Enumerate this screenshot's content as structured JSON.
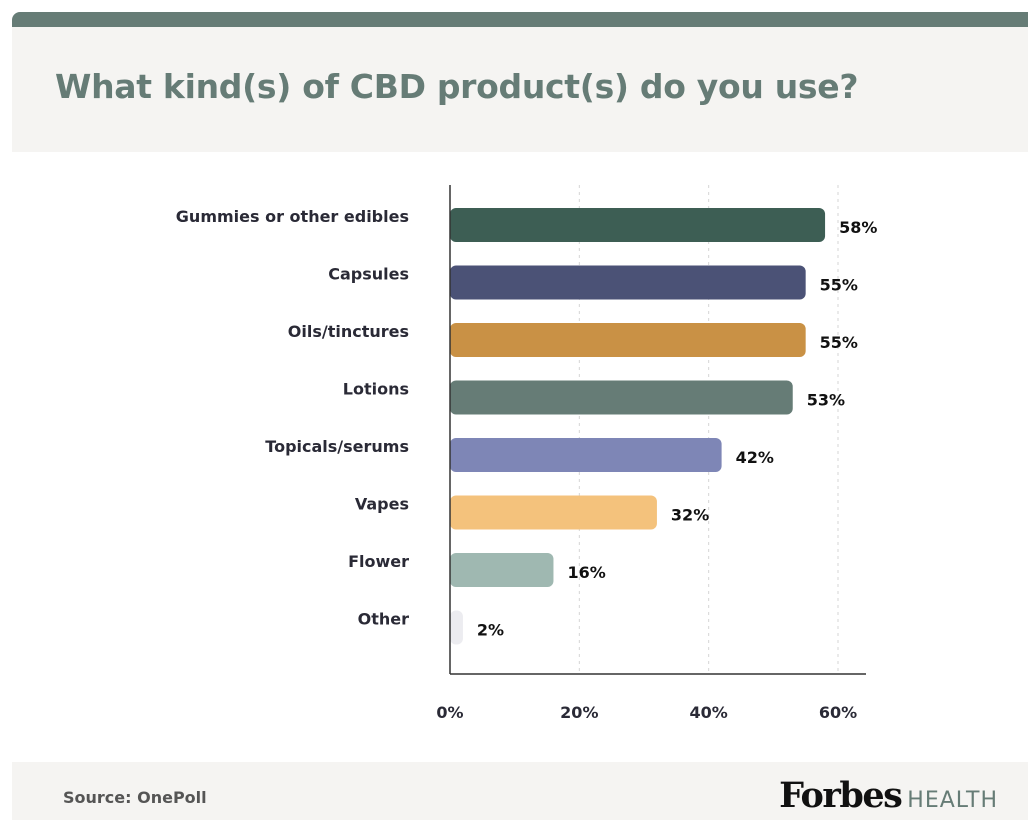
{
  "title": "What kind(s) of CBD product(s) do you use?",
  "footer": {
    "source_label": "Source:",
    "source_value": "OnePoll"
  },
  "brand": {
    "name": "Forbes",
    "subname": "HEALTH"
  },
  "chart_data": {
    "type": "bar",
    "orientation": "horizontal",
    "title": "What kind(s) of CBD product(s) do you use?",
    "categories": [
      "Gummies or other edibles",
      "Capsules",
      "Oils/tinctures",
      "Lotions",
      "Topicals/serums",
      "Vapes",
      "Flower",
      "Other"
    ],
    "values": [
      58,
      55,
      55,
      53,
      42,
      32,
      16,
      2
    ],
    "value_labels": [
      "58%",
      "55%",
      "55%",
      "53%",
      "42%",
      "32%",
      "16%",
      "2%"
    ],
    "colors": [
      "#3d5e54",
      "#4b5276",
      "#c99145",
      "#667c76",
      "#7e86b6",
      "#f4c27c",
      "#9fb8b1",
      "#ececf0"
    ],
    "xlim": [
      0,
      60
    ],
    "xticks": [
      0,
      20,
      40,
      60
    ],
    "xtick_labels": [
      "0%",
      "20%",
      "40%",
      "60%"
    ],
    "grid": "vertical dashed",
    "xlabel": "",
    "ylabel": ""
  }
}
